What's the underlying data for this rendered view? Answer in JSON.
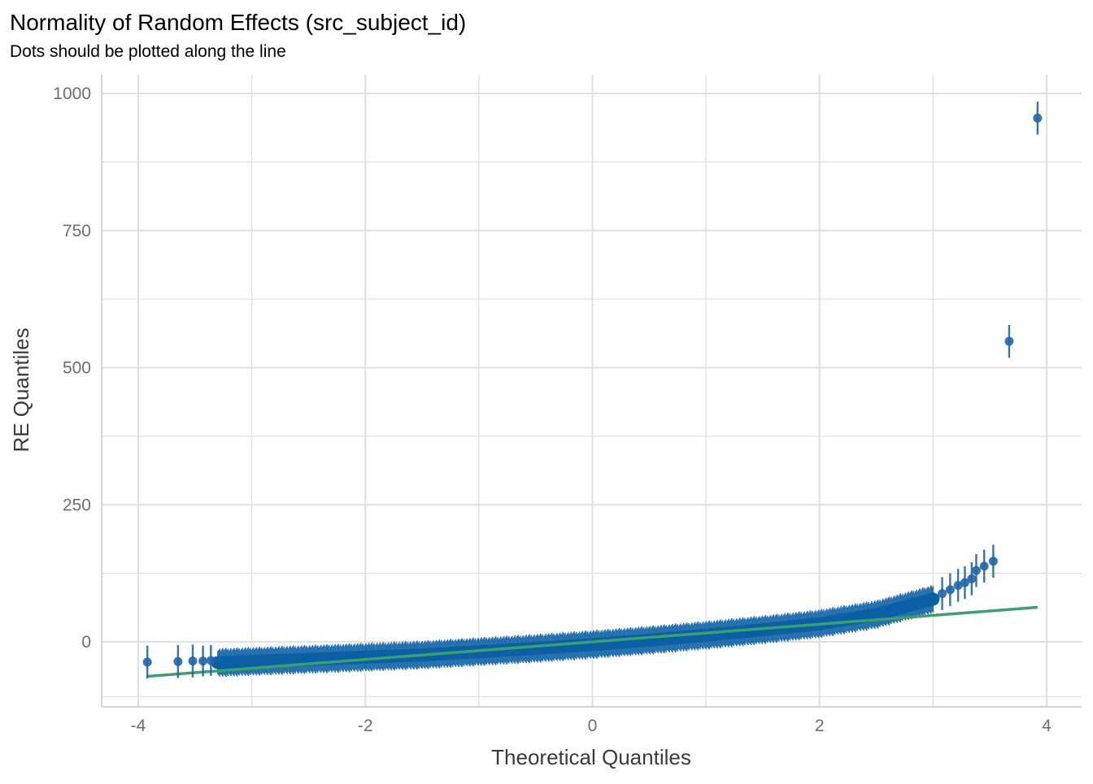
{
  "chart_data": {
    "type": "scatter",
    "title": "Normality of Random Effects (src_subject_id)",
    "subtitle": "Dots should be plotted along the line",
    "xlabel": "Theoretical Quantiles",
    "ylabel": "RE Quantiles",
    "xlim": [
      -4.15,
      4.35
    ],
    "ylim": [
      -118,
      1010
    ],
    "x_ticks": [
      -4,
      -2,
      0,
      2,
      4
    ],
    "x_tick_labels": [
      "-4",
      "-2",
      "0",
      "2",
      "4"
    ],
    "y_ticks": [
      0,
      250,
      500,
      750,
      1000
    ],
    "y_tick_labels": [
      "0",
      "250",
      "500",
      "750",
      "1000"
    ],
    "grid": true,
    "legend": "none",
    "colors": {
      "points": "#1f66a8",
      "dense_band": "#0b5fa5",
      "reference_line": "#3aa06e",
      "grid": "#e0e0e0",
      "axis": "#c8c8c8"
    },
    "reference_line": {
      "x": [
        -3.92,
        3.92
      ],
      "y": [
        -63,
        63
      ]
    },
    "dense_band": {
      "x_range": [
        -3.3,
        3.0
      ],
      "center_curve": [
        {
          "x": -3.3,
          "y": -38
        },
        {
          "x": -2.5,
          "y": -32
        },
        {
          "x": -1.5,
          "y": -24
        },
        {
          "x": -0.5,
          "y": -12
        },
        {
          "x": 0.0,
          "y": -5
        },
        {
          "x": 0.5,
          "y": 3
        },
        {
          "x": 1.0,
          "y": 12
        },
        {
          "x": 1.5,
          "y": 22
        },
        {
          "x": 2.0,
          "y": 33
        },
        {
          "x": 2.5,
          "y": 50
        },
        {
          "x": 3.0,
          "y": 78
        }
      ],
      "error_half_width": 24
    },
    "points": [
      {
        "x": -3.92,
        "y": -37,
        "err": 30
      },
      {
        "x": -3.65,
        "y": -36,
        "err": 30
      },
      {
        "x": -3.52,
        "y": -35,
        "err": 30
      },
      {
        "x": -3.43,
        "y": -35,
        "err": 28
      },
      {
        "x": -3.36,
        "y": -34,
        "err": 28
      },
      {
        "x": 3.08,
        "y": 88,
        "err": 30
      },
      {
        "x": 3.15,
        "y": 95,
        "err": 30
      },
      {
        "x": 3.22,
        "y": 103,
        "err": 30
      },
      {
        "x": 3.28,
        "y": 108,
        "err": 30
      },
      {
        "x": 3.34,
        "y": 115,
        "err": 30
      },
      {
        "x": 3.38,
        "y": 130,
        "err": 30
      },
      {
        "x": 3.45,
        "y": 138,
        "err": 30
      },
      {
        "x": 3.53,
        "y": 147,
        "err": 30
      },
      {
        "x": 3.67,
        "y": 548,
        "err": 30
      },
      {
        "x": 3.92,
        "y": 955,
        "err": 30
      }
    ]
  }
}
